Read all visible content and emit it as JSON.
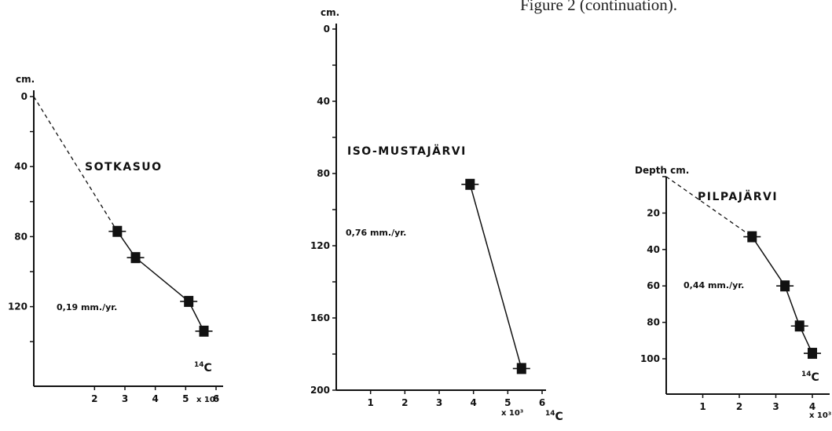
{
  "caption": "Figure 2 (continuation).",
  "chart_data": [
    {
      "type": "line",
      "title": "SOTKASUO",
      "ylabel": "cm.",
      "xlabel": "14C",
      "x_multiplier": "x 10³",
      "annotation": "0,19 mm./yr.",
      "xlim": [
        0,
        6
      ],
      "ylim": [
        0,
        150
      ],
      "y_inverted": true,
      "xticks": [
        2,
        3,
        4,
        5,
        6
      ],
      "yticks": [
        0,
        40,
        80,
        120
      ],
      "points": [
        {
          "x": 2.75,
          "y": 77
        },
        {
          "x": 3.35,
          "y": 92
        },
        {
          "x": 5.1,
          "y": 117
        },
        {
          "x": 5.6,
          "y": 134
        }
      ],
      "dashed_extrapolation": [
        {
          "x": 0,
          "y": 0
        },
        {
          "x": 2.75,
          "y": 77
        }
      ]
    },
    {
      "type": "line",
      "title": "ISO-MUSTAJÄRVI",
      "ylabel": "cm.",
      "xlabel": "14C",
      "x_multiplier": "x 10³",
      "annotation": "0,76 mm./yr.",
      "xlim": [
        0,
        6
      ],
      "ylim": [
        0,
        200
      ],
      "y_inverted": true,
      "xticks": [
        1,
        2,
        3,
        4,
        5,
        6
      ],
      "yticks": [
        0,
        40,
        80,
        120,
        160,
        200
      ],
      "points": [
        {
          "x": 3.9,
          "y": 86
        },
        {
          "x": 5.4,
          "y": 188
        }
      ],
      "dashed_extrapolation": []
    },
    {
      "type": "line",
      "title": "PILPAJÄRVI",
      "ylabel": "Depth cm.",
      "xlabel": "14C",
      "x_multiplier": "x 10³",
      "annotation": "0,44 mm./yr.",
      "xlim": [
        0,
        4.4
      ],
      "ylim": [
        0,
        115
      ],
      "y_inverted": true,
      "xticks": [
        1,
        2,
        3,
        4
      ],
      "yticks": [
        20,
        40,
        60,
        80,
        100
      ],
      "points": [
        {
          "x": 2.35,
          "y": 33
        },
        {
          "x": 3.25,
          "y": 60
        },
        {
          "x": 3.65,
          "y": 82
        },
        {
          "x": 4.0,
          "y": 97
        }
      ],
      "dashed_extrapolation": [
        {
          "x": 0,
          "y": 0
        },
        {
          "x": 2.35,
          "y": 33
        }
      ]
    }
  ]
}
